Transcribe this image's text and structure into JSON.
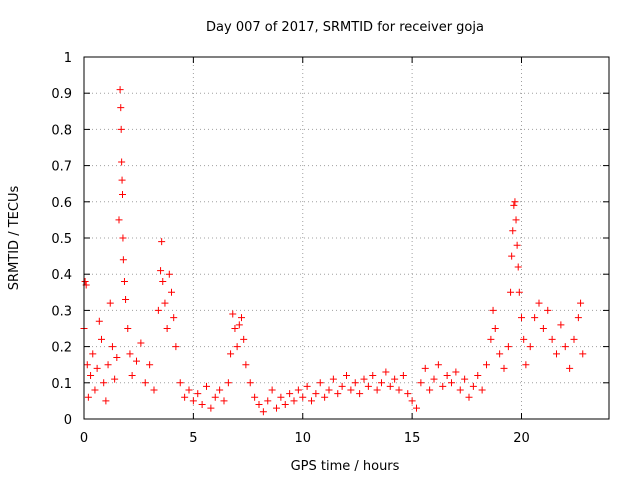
{
  "chart_data": {
    "type": "scatter",
    "title": "Day 007 of 2017, SRMTID for receiver goja",
    "xlabel": "GPS time / hours",
    "ylabel": "SRMTID / TECUs",
    "xlim": [
      0,
      24
    ],
    "ylim": [
      0,
      1
    ],
    "xticks": [
      0,
      5,
      10,
      15,
      20
    ],
    "xtick_labels": [
      "0",
      "5",
      "10",
      "15",
      "20"
    ],
    "yticks": [
      0,
      0.1,
      0.2,
      0.3,
      0.4,
      0.5,
      0.6,
      0.7,
      0.8,
      0.9,
      1
    ],
    "ytick_labels": [
      "0",
      "0.1",
      "0.2",
      "0.3",
      "0.4",
      "0.5",
      "0.6",
      "0.7",
      "0.8",
      "0.9",
      "1"
    ],
    "grid": true,
    "marker": "+",
    "color": "#ff0000",
    "series": [
      {
        "name": "SRMTID",
        "points": [
          [
            0.0,
            0.25
          ],
          [
            0.05,
            0.38
          ],
          [
            0.1,
            0.37
          ],
          [
            0.15,
            0.15
          ],
          [
            0.2,
            0.06
          ],
          [
            0.3,
            0.12
          ],
          [
            0.4,
            0.18
          ],
          [
            0.5,
            0.08
          ],
          [
            0.6,
            0.14
          ],
          [
            0.7,
            0.27
          ],
          [
            0.8,
            0.22
          ],
          [
            0.9,
            0.1
          ],
          [
            1.0,
            0.05
          ],
          [
            1.1,
            0.15
          ],
          [
            1.2,
            0.32
          ],
          [
            1.3,
            0.2
          ],
          [
            1.4,
            0.11
          ],
          [
            1.5,
            0.17
          ],
          [
            1.6,
            0.55
          ],
          [
            1.65,
            0.91
          ],
          [
            1.68,
            0.86
          ],
          [
            1.7,
            0.8
          ],
          [
            1.72,
            0.71
          ],
          [
            1.74,
            0.66
          ],
          [
            1.76,
            0.62
          ],
          [
            1.78,
            0.5
          ],
          [
            1.8,
            0.44
          ],
          [
            1.85,
            0.38
          ],
          [
            1.9,
            0.33
          ],
          [
            2.0,
            0.25
          ],
          [
            2.1,
            0.18
          ],
          [
            2.2,
            0.12
          ],
          [
            2.4,
            0.16
          ],
          [
            2.6,
            0.21
          ],
          [
            2.8,
            0.1
          ],
          [
            3.0,
            0.15
          ],
          [
            3.2,
            0.08
          ],
          [
            3.4,
            0.3
          ],
          [
            3.5,
            0.41
          ],
          [
            3.55,
            0.49
          ],
          [
            3.6,
            0.38
          ],
          [
            3.7,
            0.32
          ],
          [
            3.8,
            0.25
          ],
          [
            3.9,
            0.4
          ],
          [
            4.0,
            0.35
          ],
          [
            4.1,
            0.28
          ],
          [
            4.2,
            0.2
          ],
          [
            4.4,
            0.1
          ],
          [
            4.6,
            0.06
          ],
          [
            4.8,
            0.08
          ],
          [
            5.0,
            0.05
          ],
          [
            5.2,
            0.07
          ],
          [
            5.4,
            0.04
          ],
          [
            5.6,
            0.09
          ],
          [
            5.8,
            0.03
          ],
          [
            6.0,
            0.06
          ],
          [
            6.2,
            0.08
          ],
          [
            6.4,
            0.05
          ],
          [
            6.6,
            0.1
          ],
          [
            6.7,
            0.18
          ],
          [
            6.8,
            0.29
          ],
          [
            6.9,
            0.25
          ],
          [
            7.0,
            0.2
          ],
          [
            7.1,
            0.26
          ],
          [
            7.2,
            0.28
          ],
          [
            7.3,
            0.22
          ],
          [
            7.4,
            0.15
          ],
          [
            7.6,
            0.1
          ],
          [
            7.8,
            0.06
          ],
          [
            8.0,
            0.04
          ],
          [
            8.2,
            0.02
          ],
          [
            8.4,
            0.05
          ],
          [
            8.6,
            0.08
          ],
          [
            8.8,
            0.03
          ],
          [
            9.0,
            0.06
          ],
          [
            9.2,
            0.04
          ],
          [
            9.4,
            0.07
          ],
          [
            9.6,
            0.05
          ],
          [
            9.8,
            0.08
          ],
          [
            10.0,
            0.06
          ],
          [
            10.2,
            0.09
          ],
          [
            10.4,
            0.05
          ],
          [
            10.6,
            0.07
          ],
          [
            10.8,
            0.1
          ],
          [
            11.0,
            0.06
          ],
          [
            11.2,
            0.08
          ],
          [
            11.4,
            0.11
          ],
          [
            11.6,
            0.07
          ],
          [
            11.8,
            0.09
          ],
          [
            12.0,
            0.12
          ],
          [
            12.2,
            0.08
          ],
          [
            12.4,
            0.1
          ],
          [
            12.6,
            0.07
          ],
          [
            12.8,
            0.11
          ],
          [
            13.0,
            0.09
          ],
          [
            13.2,
            0.12
          ],
          [
            13.4,
            0.08
          ],
          [
            13.6,
            0.1
          ],
          [
            13.8,
            0.13
          ],
          [
            14.0,
            0.09
          ],
          [
            14.2,
            0.11
          ],
          [
            14.4,
            0.08
          ],
          [
            14.6,
            0.12
          ],
          [
            14.8,
            0.07
          ],
          [
            15.0,
            0.05
          ],
          [
            15.2,
            0.03
          ],
          [
            15.4,
            0.1
          ],
          [
            15.6,
            0.14
          ],
          [
            15.8,
            0.08
          ],
          [
            16.0,
            0.11
          ],
          [
            16.2,
            0.15
          ],
          [
            16.4,
            0.09
          ],
          [
            16.6,
            0.12
          ],
          [
            16.8,
            0.1
          ],
          [
            17.0,
            0.13
          ],
          [
            17.2,
            0.08
          ],
          [
            17.4,
            0.11
          ],
          [
            17.6,
            0.06
          ],
          [
            17.8,
            0.09
          ],
          [
            18.0,
            0.12
          ],
          [
            18.2,
            0.08
          ],
          [
            18.4,
            0.15
          ],
          [
            18.6,
            0.22
          ],
          [
            18.7,
            0.3
          ],
          [
            18.8,
            0.25
          ],
          [
            19.0,
            0.18
          ],
          [
            19.2,
            0.14
          ],
          [
            19.4,
            0.2
          ],
          [
            19.5,
            0.35
          ],
          [
            19.55,
            0.45
          ],
          [
            19.6,
            0.52
          ],
          [
            19.65,
            0.59
          ],
          [
            19.7,
            0.6
          ],
          [
            19.75,
            0.55
          ],
          [
            19.8,
            0.48
          ],
          [
            19.85,
            0.42
          ],
          [
            19.9,
            0.35
          ],
          [
            20.0,
            0.28
          ],
          [
            20.1,
            0.22
          ],
          [
            20.2,
            0.15
          ],
          [
            20.4,
            0.2
          ],
          [
            20.6,
            0.28
          ],
          [
            20.8,
            0.32
          ],
          [
            21.0,
            0.25
          ],
          [
            21.2,
            0.3
          ],
          [
            21.4,
            0.22
          ],
          [
            21.6,
            0.18
          ],
          [
            21.8,
            0.26
          ],
          [
            22.0,
            0.2
          ],
          [
            22.2,
            0.14
          ],
          [
            22.4,
            0.22
          ],
          [
            22.6,
            0.28
          ],
          [
            22.7,
            0.32
          ],
          [
            22.8,
            0.18
          ]
        ]
      }
    ]
  }
}
